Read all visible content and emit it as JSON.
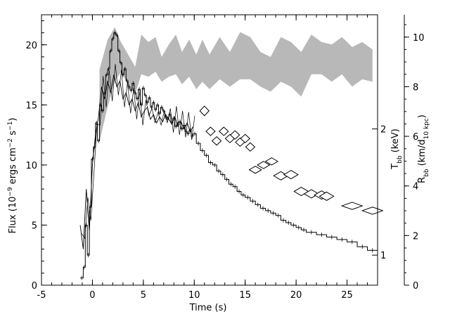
{
  "chart_data": {
    "type": "line",
    "title": "",
    "xlabel": "Time (s)",
    "ylabel": "Flux (10^-9 ergs cm^-2 s^-1)",
    "y2label": "T_bb (keV)",
    "y3label": "R_bb (km/d_10 kpc)",
    "xlim": [
      -5,
      28
    ],
    "ylim": [
      0,
      22.5
    ],
    "r_axis_lim": [
      0,
      10.9
    ],
    "x_ticks": [
      -5,
      0,
      5,
      10,
      15,
      20,
      25
    ],
    "y_ticks": [
      0,
      5,
      10,
      15,
      20
    ],
    "r_ticks": [
      0,
      2,
      4,
      6,
      8,
      10
    ],
    "t_ticks": [
      {
        "label": "1",
        "flux": 2.5
      },
      {
        "label": "2",
        "flux": 13.0
      }
    ],
    "grid": false,
    "series": [
      {
        "style": "histogram",
        "x": [
          -1.2,
          -0.9,
          -0.7,
          -0.5,
          -0.3,
          -0.1,
          0.1,
          0.3,
          0.5,
          0.7,
          0.9,
          1.1,
          1.3,
          1.5,
          1.7,
          1.9,
          2.1,
          2.3,
          2.5,
          2.7,
          2.9,
          3.1,
          3.3,
          3.5,
          3.7,
          3.9,
          4.1,
          4.3,
          4.5,
          4.7,
          4.9,
          5.1,
          5.3,
          5.5,
          5.7,
          5.9,
          6.1,
          6.3,
          6.5,
          6.7,
          6.9,
          7.1,
          7.3,
          7.5,
          7.7,
          7.9,
          8.1,
          8.3,
          8.5,
          8.7,
          8.9,
          9.1,
          9.3,
          9.5,
          9.7,
          9.9,
          10.2,
          10.6,
          11.0,
          11.4,
          11.8,
          12.2,
          12.6,
          13.0,
          13.4,
          13.8,
          14.2,
          14.6,
          15.0,
          15.5,
          16.0,
          16.5,
          17.0,
          17.5,
          18.0,
          18.5,
          19.0,
          19.5,
          20.0,
          20.5,
          21.0,
          22.0,
          23.0,
          24.0,
          25.0,
          26.0,
          27.0,
          28.0
        ],
        "y": [
          0.6,
          1.5,
          5.0,
          2.5,
          6.5,
          10.5,
          11.5,
          13.5,
          12.0,
          15.0,
          14.5,
          16.0,
          17.5,
          18.0,
          19.5,
          20.5,
          21.0,
          20.8,
          19.5,
          18.5,
          17.5,
          18.0,
          17.0,
          16.5,
          16.2,
          16.8,
          16.0,
          15.5,
          16.3,
          15.0,
          16.4,
          15.8,
          15.2,
          15.6,
          14.8,
          15.2,
          14.6,
          15.0,
          14.3,
          14.8,
          14.5,
          14.0,
          13.8,
          14.2,
          13.5,
          13.9,
          13.2,
          13.5,
          13.6,
          13.0,
          13.3,
          12.8,
          12.6,
          12.9,
          12.4,
          12.6,
          11.8,
          11.2,
          10.8,
          10.2,
          10.0,
          9.5,
          9.2,
          8.8,
          8.4,
          8.2,
          7.8,
          7.5,
          7.3,
          7.0,
          6.7,
          6.4,
          6.2,
          6.0,
          5.8,
          5.4,
          5.2,
          5.0,
          4.8,
          4.6,
          4.4,
          4.2,
          4.0,
          3.8,
          3.6,
          3.2,
          2.9,
          2.5
        ]
      },
      {
        "style": "jagged",
        "x": [
          -1.2,
          -0.9,
          -0.6,
          -0.3,
          0.0,
          0.3,
          0.6,
          0.9,
          1.2,
          1.5,
          1.8,
          2.1,
          2.4,
          2.7,
          3.0,
          3.3,
          3.6,
          3.9,
          4.2,
          4.5,
          4.8,
          5.1,
          5.4,
          5.7,
          6.0,
          6.3,
          6.6,
          6.9,
          7.2,
          7.5,
          7.8,
          8.1,
          8.4,
          8.7,
          9.0,
          9.3,
          9.6,
          9.9
        ],
        "y": [
          5.0,
          3.0,
          8.0,
          4.5,
          10.0,
          12.5,
          14.0,
          16.5,
          15.5,
          17.0,
          16.0,
          17.5,
          16.5,
          17.0,
          15.5,
          16.0,
          15.0,
          15.5,
          14.5,
          15.2,
          14.0,
          14.5,
          14.8,
          13.8,
          14.2,
          13.5,
          14.0,
          13.6,
          14.2,
          13.8,
          13.4,
          14.0,
          13.2,
          13.6,
          13.0,
          13.5,
          12.8,
          13.2
        ]
      },
      {
        "style": "band",
        "x": [
          0.7,
          1.5,
          2.2,
          2.8,
          3.5,
          4.2,
          4.8,
          5.5,
          6.2,
          6.8,
          7.5,
          8.2,
          8.8,
          9.5,
          10.2,
          10.8,
          11.5,
          12.5,
          13.5,
          14.5,
          15.5,
          16.5,
          17.5,
          18.5,
          19.5,
          20.5,
          21.5,
          22.5,
          23.5,
          24.5,
          25.5,
          26.5,
          27.5
        ],
        "r_low": [
          5.8,
          7.2,
          8.2,
          8.6,
          8.1,
          7.7,
          8.5,
          8.4,
          8.6,
          8.2,
          8.4,
          8.5,
          8.1,
          8.4,
          7.9,
          8.2,
          7.9,
          8.3,
          8.0,
          8.3,
          8.3,
          8.0,
          7.8,
          8.2,
          8.0,
          7.6,
          8.5,
          8.5,
          8.2,
          8.5,
          8.0,
          8.3,
          8.2
        ],
        "r_high": [
          8.7,
          9.9,
          10.4,
          9.8,
          9.3,
          8.8,
          10.1,
          9.8,
          10.0,
          9.2,
          9.7,
          10.1,
          9.4,
          9.9,
          9.3,
          9.9,
          9.3,
          10.0,
          9.4,
          10.2,
          10.0,
          9.4,
          9.2,
          10.0,
          9.8,
          9.4,
          10.1,
          9.8,
          9.7,
          10.0,
          9.6,
          9.8,
          9.5
        ]
      },
      {
        "style": "diamonds",
        "x": [
          11.0,
          11.6,
          12.2,
          12.9,
          13.5,
          14.0,
          14.5,
          15.0,
          15.5,
          16.0,
          16.8,
          17.6,
          18.5,
          19.5,
          20.5,
          21.5,
          22.5,
          23.0,
          25.5,
          27.5
        ],
        "flux": [
          14.5,
          12.8,
          12.0,
          12.8,
          12.2,
          12.5,
          11.9,
          12.2,
          11.5,
          9.6,
          10.0,
          10.3,
          9.1,
          9.2,
          7.8,
          7.6,
          7.5,
          7.4,
          6.6,
          6.2
        ],
        "dx": [
          0.45,
          0.45,
          0.45,
          0.45,
          0.45,
          0.45,
          0.45,
          0.45,
          0.45,
          0.6,
          0.6,
          0.6,
          0.7,
          0.7,
          0.7,
          0.7,
          0.7,
          0.7,
          1.0,
          1.0
        ],
        "dy": [
          0.4,
          0.35,
          0.35,
          0.35,
          0.35,
          0.35,
          0.35,
          0.35,
          0.35,
          0.3,
          0.3,
          0.3,
          0.35,
          0.35,
          0.35,
          0.35,
          0.35,
          0.35,
          0.3,
          0.3
        ]
      }
    ]
  }
}
